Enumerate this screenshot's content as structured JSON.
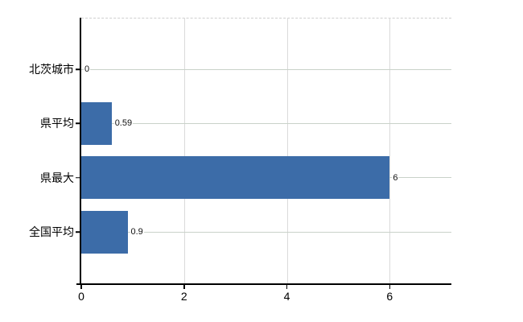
{
  "chart": {
    "background": "#ffffff",
    "bar_color": "#3c6ca8",
    "axis_color": "#000000",
    "row_grid_color": "#c9d2c9",
    "tick_grid_color": "#dadada",
    "plot_top_border_color": "#cfcfcf"
  },
  "chart_data": {
    "type": "bar",
    "orientation": "horizontal",
    "title": "",
    "xlabel": "",
    "ylabel": "",
    "categories": [
      "北茨城市",
      "県平均",
      "県最大",
      "全国平均"
    ],
    "values": [
      0,
      0.59,
      6,
      0.9
    ],
    "value_labels": [
      "0",
      "0.59",
      "6",
      "0.9"
    ],
    "x_ticks": [
      {
        "value": 0,
        "label": "0"
      },
      {
        "value": 2,
        "label": "2"
      },
      {
        "value": 4,
        "label": "4"
      },
      {
        "value": 6,
        "label": "6"
      }
    ],
    "xlim": [
      0,
      7.2
    ],
    "grid": true,
    "legend": false
  }
}
